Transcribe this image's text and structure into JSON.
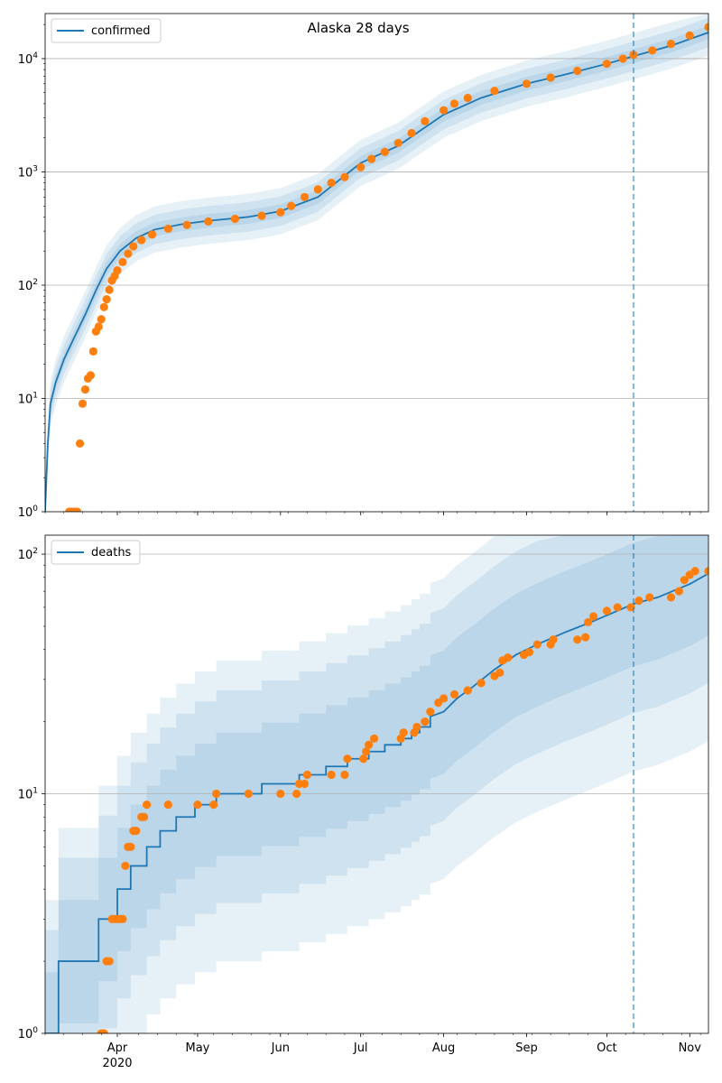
{
  "title": "Alaska 28 days",
  "colors": {
    "model": "#1f77b4",
    "observed": "#ff7f0e",
    "band": "#1f77b4",
    "grid": "#b0b0b0",
    "vline": "#1f77b4"
  },
  "x_axis": {
    "ticks": [
      {
        "date": "2020-04-01",
        "label": "Apr"
      },
      {
        "date": "2020-05-01",
        "label": "May"
      },
      {
        "date": "2020-06-01",
        "label": "Jun"
      },
      {
        "date": "2020-07-01",
        "label": "Jul"
      },
      {
        "date": "2020-08-01",
        "label": "Aug"
      },
      {
        "date": "2020-09-01",
        "label": "Sep"
      },
      {
        "date": "2020-10-01",
        "label": "Oct"
      },
      {
        "date": "2020-11-01",
        "label": "Nov"
      }
    ],
    "year_label": "2020",
    "xlim": [
      "2020-03-05",
      "2020-11-08"
    ]
  },
  "chart_data": [
    {
      "type": "line",
      "yscale": "log",
      "ylim": [
        1,
        25000
      ],
      "legend": "confirmed",
      "legend_position": "top-left",
      "grid": "y-major",
      "forecast_start": "2020-10-11",
      "y_ticks": [
        {
          "value": 1,
          "base": "10",
          "exp": "0"
        },
        {
          "value": 10,
          "base": "10",
          "exp": "1"
        },
        {
          "value": 100,
          "base": "10",
          "exp": "2"
        },
        {
          "value": 1000,
          "base": "10",
          "exp": "3"
        },
        {
          "value": 10000,
          "base": "10",
          "exp": "4"
        }
      ],
      "model_median": [
        [
          "2020-03-05",
          1
        ],
        [
          "2020-03-06",
          4
        ],
        [
          "2020-03-07",
          9
        ],
        [
          "2020-03-09",
          14
        ],
        [
          "2020-03-12",
          22
        ],
        [
          "2020-03-16",
          35
        ],
        [
          "2020-03-20",
          55
        ],
        [
          "2020-03-24",
          90
        ],
        [
          "2020-03-28",
          140
        ],
        [
          "2020-04-02",
          200
        ],
        [
          "2020-04-08",
          260
        ],
        [
          "2020-04-15",
          310
        ],
        [
          "2020-04-25",
          345
        ],
        [
          "2020-05-05",
          370
        ],
        [
          "2020-05-20",
          400
        ],
        [
          "2020-06-01",
          450
        ],
        [
          "2020-06-15",
          600
        ],
        [
          "2020-07-01",
          1200
        ],
        [
          "2020-07-15",
          1700
        ],
        [
          "2020-08-01",
          3200
        ],
        [
          "2020-08-15",
          4500
        ],
        [
          "2020-09-01",
          6000
        ],
        [
          "2020-09-15",
          7200
        ],
        [
          "2020-10-01",
          9000
        ],
        [
          "2020-10-11",
          10500
        ],
        [
          "2020-10-25",
          13000
        ],
        [
          "2020-11-08",
          17000
        ]
      ],
      "band_width_factors": [
        1.15,
        1.35,
        1.6
      ],
      "observed": [
        [
          "2020-03-14",
          1
        ],
        [
          "2020-03-15",
          1
        ],
        [
          "2020-03-16",
          1
        ],
        [
          "2020-03-17",
          1
        ],
        [
          "2020-03-18",
          4
        ],
        [
          "2020-03-19",
          9
        ],
        [
          "2020-03-20",
          12
        ],
        [
          "2020-03-21",
          15
        ],
        [
          "2020-03-22",
          16
        ],
        [
          "2020-03-23",
          26
        ],
        [
          "2020-03-24",
          39
        ],
        [
          "2020-03-25",
          43
        ],
        [
          "2020-03-26",
          50
        ],
        [
          "2020-03-27",
          64
        ],
        [
          "2020-03-28",
          75
        ],
        [
          "2020-03-29",
          91
        ],
        [
          "2020-03-30",
          110
        ],
        [
          "2020-03-31",
          120
        ],
        [
          "2020-04-01",
          135
        ],
        [
          "2020-04-03",
          160
        ],
        [
          "2020-04-05",
          190
        ],
        [
          "2020-04-07",
          220
        ],
        [
          "2020-04-10",
          250
        ],
        [
          "2020-04-14",
          280
        ],
        [
          "2020-04-20",
          315
        ],
        [
          "2020-04-27",
          340
        ],
        [
          "2020-05-05",
          365
        ],
        [
          "2020-05-15",
          385
        ],
        [
          "2020-05-25",
          410
        ],
        [
          "2020-06-01",
          440
        ],
        [
          "2020-06-05",
          500
        ],
        [
          "2020-06-10",
          600
        ],
        [
          "2020-06-15",
          700
        ],
        [
          "2020-06-20",
          800
        ],
        [
          "2020-06-25",
          900
        ],
        [
          "2020-07-01",
          1100
        ],
        [
          "2020-07-05",
          1300
        ],
        [
          "2020-07-10",
          1500
        ],
        [
          "2020-07-15",
          1800
        ],
        [
          "2020-07-20",
          2200
        ],
        [
          "2020-07-25",
          2800
        ],
        [
          "2020-08-01",
          3500
        ],
        [
          "2020-08-05",
          4000
        ],
        [
          "2020-08-10",
          4500
        ],
        [
          "2020-08-20",
          5200
        ],
        [
          "2020-09-01",
          6000
        ],
        [
          "2020-09-10",
          6800
        ],
        [
          "2020-09-20",
          7800
        ],
        [
          "2020-10-01",
          9000
        ],
        [
          "2020-10-07",
          10000
        ],
        [
          "2020-10-11",
          10800
        ],
        [
          "2020-10-18",
          11800
        ],
        [
          "2020-10-25",
          13500
        ],
        [
          "2020-11-01",
          16000
        ],
        [
          "2020-11-08",
          19000
        ]
      ]
    },
    {
      "type": "line",
      "yscale": "log",
      "ylim": [
        1,
        120
      ],
      "legend": "deaths",
      "legend_position": "top-left",
      "grid": "y-major",
      "forecast_start": "2020-10-11",
      "y_ticks": [
        {
          "value": 1,
          "base": "10",
          "exp": "0"
        },
        {
          "value": 10,
          "base": "10",
          "exp": "1"
        },
        {
          "value": 100,
          "base": "10",
          "exp": "2"
        }
      ],
      "model_median": [
        [
          "2020-03-05",
          1
        ],
        [
          "2020-03-10",
          1
        ],
        [
          "2020-03-10",
          2
        ],
        [
          "2020-03-25",
          2
        ],
        [
          "2020-03-25",
          3
        ],
        [
          "2020-04-01",
          3
        ],
        [
          "2020-04-01",
          4
        ],
        [
          "2020-04-06",
          4
        ],
        [
          "2020-04-06",
          5
        ],
        [
          "2020-04-12",
          5
        ],
        [
          "2020-04-12",
          6
        ],
        [
          "2020-04-17",
          6
        ],
        [
          "2020-04-17",
          7
        ],
        [
          "2020-04-23",
          7
        ],
        [
          "2020-04-23",
          8
        ],
        [
          "2020-04-30",
          8
        ],
        [
          "2020-04-30",
          9
        ],
        [
          "2020-05-08",
          9
        ],
        [
          "2020-05-08",
          10
        ],
        [
          "2020-05-25",
          10
        ],
        [
          "2020-05-25",
          11
        ],
        [
          "2020-06-08",
          11
        ],
        [
          "2020-06-08",
          12
        ],
        [
          "2020-06-18",
          12
        ],
        [
          "2020-06-18",
          13
        ],
        [
          "2020-06-26",
          13
        ],
        [
          "2020-06-26",
          14
        ],
        [
          "2020-07-04",
          14
        ],
        [
          "2020-07-04",
          15
        ],
        [
          "2020-07-10",
          15
        ],
        [
          "2020-07-10",
          16
        ],
        [
          "2020-07-16",
          16
        ],
        [
          "2020-07-16",
          17
        ],
        [
          "2020-07-20",
          17
        ],
        [
          "2020-07-20",
          18
        ],
        [
          "2020-07-23",
          18
        ],
        [
          "2020-07-23",
          19
        ],
        [
          "2020-07-27",
          19
        ],
        [
          "2020-07-27",
          21
        ],
        [
          "2020-08-01",
          22
        ],
        [
          "2020-08-06",
          25
        ],
        [
          "2020-08-12",
          28
        ],
        [
          "2020-08-20",
          33
        ],
        [
          "2020-08-28",
          38
        ],
        [
          "2020-09-05",
          42
        ],
        [
          "2020-09-15",
          47
        ],
        [
          "2020-09-25",
          52
        ],
        [
          "2020-10-05",
          58
        ],
        [
          "2020-10-11",
          62
        ],
        [
          "2020-10-20",
          66
        ],
        [
          "2020-11-01",
          75
        ],
        [
          "2020-11-08",
          83
        ]
      ],
      "bands": [
        {
          "low_factor": 0.55,
          "high_factor": 1.8
        },
        {
          "low_factor": 0.35,
          "high_factor": 2.7
        },
        {
          "low_factor": 0.2,
          "high_factor": 3.6
        }
      ],
      "observed": [
        [
          "2020-03-26",
          1
        ],
        [
          "2020-03-27",
          1
        ],
        [
          "2020-03-28",
          2
        ],
        [
          "2020-03-29",
          2
        ],
        [
          "2020-03-30",
          3
        ],
        [
          "2020-03-31",
          3
        ],
        [
          "2020-04-01",
          3
        ],
        [
          "2020-04-02",
          3
        ],
        [
          "2020-04-03",
          3
        ],
        [
          "2020-04-04",
          5
        ],
        [
          "2020-04-05",
          6
        ],
        [
          "2020-04-06",
          6
        ],
        [
          "2020-04-07",
          7
        ],
        [
          "2020-04-08",
          7
        ],
        [
          "2020-04-10",
          8
        ],
        [
          "2020-04-11",
          8
        ],
        [
          "2020-04-12",
          9
        ],
        [
          "2020-04-20",
          9
        ],
        [
          "2020-05-01",
          9
        ],
        [
          "2020-05-07",
          9
        ],
        [
          "2020-05-08",
          10
        ],
        [
          "2020-05-20",
          10
        ],
        [
          "2020-06-01",
          10
        ],
        [
          "2020-06-07",
          10
        ],
        [
          "2020-06-08",
          11
        ],
        [
          "2020-06-10",
          11
        ],
        [
          "2020-06-11",
          12
        ],
        [
          "2020-06-20",
          12
        ],
        [
          "2020-06-25",
          12
        ],
        [
          "2020-06-26",
          14
        ],
        [
          "2020-07-02",
          14
        ],
        [
          "2020-07-03",
          15
        ],
        [
          "2020-07-04",
          16
        ],
        [
          "2020-07-06",
          17
        ],
        [
          "2020-07-16",
          17
        ],
        [
          "2020-07-17",
          18
        ],
        [
          "2020-07-21",
          18
        ],
        [
          "2020-07-22",
          19
        ],
        [
          "2020-07-25",
          20
        ],
        [
          "2020-07-27",
          22
        ],
        [
          "2020-07-30",
          24
        ],
        [
          "2020-08-01",
          25
        ],
        [
          "2020-08-05",
          26
        ],
        [
          "2020-08-10",
          27
        ],
        [
          "2020-08-15",
          29
        ],
        [
          "2020-08-20",
          31
        ],
        [
          "2020-08-22",
          32
        ],
        [
          "2020-08-23",
          36
        ],
        [
          "2020-08-25",
          37
        ],
        [
          "2020-08-31",
          38
        ],
        [
          "2020-09-02",
          39
        ],
        [
          "2020-09-05",
          42
        ],
        [
          "2020-09-10",
          42
        ],
        [
          "2020-09-11",
          44
        ],
        [
          "2020-09-20",
          44
        ],
        [
          "2020-09-23",
          45
        ],
        [
          "2020-09-24",
          52
        ],
        [
          "2020-09-26",
          55
        ],
        [
          "2020-10-01",
          58
        ],
        [
          "2020-10-05",
          60
        ],
        [
          "2020-10-10",
          60
        ],
        [
          "2020-10-13",
          64
        ],
        [
          "2020-10-17",
          66
        ],
        [
          "2020-10-25",
          66
        ],
        [
          "2020-10-28",
          70
        ],
        [
          "2020-10-30",
          78
        ],
        [
          "2020-11-01",
          82
        ],
        [
          "2020-11-03",
          85
        ],
        [
          "2020-11-08",
          85
        ]
      ]
    }
  ]
}
